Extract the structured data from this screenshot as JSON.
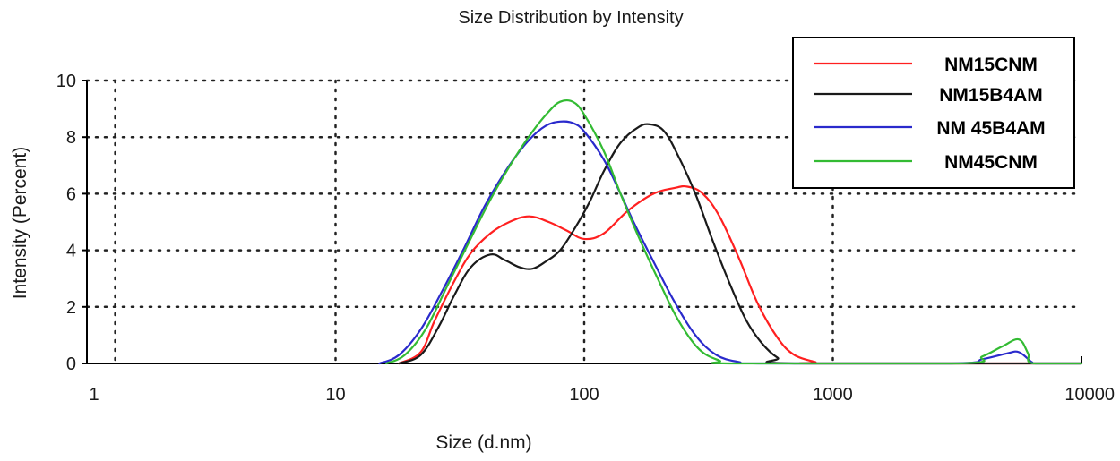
{
  "chart_data": {
    "type": "line",
    "title": "Size Distribution by Intensity",
    "xlabel": "Size (d.nm)",
    "ylabel": "Intensity (Percent)",
    "x_scale": "log",
    "xlim": [
      1,
      10000
    ],
    "ylim": [
      0,
      10
    ],
    "x_ticks": [
      1,
      10,
      100,
      1000,
      10000
    ],
    "x_tick_labels": [
      "1",
      "10",
      "100",
      "1000",
      "10000"
    ],
    "y_ticks": [
      0,
      2,
      4,
      6,
      8,
      10
    ],
    "y_tick_labels": [
      "0",
      "2",
      "4",
      "6",
      "8",
      "10"
    ],
    "x_grid": [
      1.3,
      10,
      100,
      1000,
      10000
    ],
    "grid": true,
    "legend_position": "top-right",
    "series": [
      {
        "name": "NM15CNM",
        "color": "#ff2020",
        "points": [
          [
            18,
            0
          ],
          [
            22,
            0.4
          ],
          [
            25,
            1.5
          ],
          [
            30,
            2.9
          ],
          [
            35,
            3.9
          ],
          [
            42,
            4.6
          ],
          [
            50,
            5.0
          ],
          [
            60,
            5.2
          ],
          [
            72,
            5.0
          ],
          [
            85,
            4.7
          ],
          [
            100,
            4.4
          ],
          [
            120,
            4.6
          ],
          [
            150,
            5.4
          ],
          [
            190,
            6.0
          ],
          [
            230,
            6.2
          ],
          [
            260,
            6.25
          ],
          [
            300,
            6.0
          ],
          [
            350,
            5.2
          ],
          [
            420,
            3.7
          ],
          [
            500,
            2.1
          ],
          [
            600,
            0.9
          ],
          [
            700,
            0.3
          ],
          [
            850,
            0.05
          ],
          [
            900,
            0
          ],
          [
            10000,
            0
          ]
        ]
      },
      {
        "name": "NM15B4AM",
        "color": "#1a1a1a",
        "points": [
          [
            18,
            0
          ],
          [
            22,
            0.3
          ],
          [
            26,
            1.3
          ],
          [
            30,
            2.4
          ],
          [
            35,
            3.4
          ],
          [
            42,
            3.85
          ],
          [
            48,
            3.65
          ],
          [
            55,
            3.4
          ],
          [
            62,
            3.35
          ],
          [
            70,
            3.6
          ],
          [
            80,
            4.0
          ],
          [
            92,
            4.8
          ],
          [
            105,
            5.7
          ],
          [
            120,
            6.8
          ],
          [
            140,
            7.8
          ],
          [
            165,
            8.35
          ],
          [
            185,
            8.45
          ],
          [
            210,
            8.2
          ],
          [
            240,
            7.3
          ],
          [
            280,
            6.0
          ],
          [
            330,
            4.3
          ],
          [
            390,
            2.7
          ],
          [
            450,
            1.5
          ],
          [
            520,
            0.7
          ],
          [
            600,
            0.2
          ],
          [
            700,
            0
          ],
          [
            10000,
            0
          ]
        ]
      },
      {
        "name": "NM 45B4AM",
        "color": "#2a2acc",
        "points": [
          [
            15,
            0
          ],
          [
            18,
            0.3
          ],
          [
            22,
            1.2
          ],
          [
            27,
            2.6
          ],
          [
            33,
            4.1
          ],
          [
            40,
            5.6
          ],
          [
            50,
            7.0
          ],
          [
            60,
            7.9
          ],
          [
            70,
            8.4
          ],
          [
            80,
            8.55
          ],
          [
            90,
            8.5
          ],
          [
            100,
            8.2
          ],
          [
            120,
            7.2
          ],
          [
            140,
            6.0
          ],
          [
            160,
            4.9
          ],
          [
            190,
            3.6
          ],
          [
            230,
            2.2
          ],
          [
            280,
            1.0
          ],
          [
            340,
            0.3
          ],
          [
            420,
            0.05
          ],
          [
            500,
            0
          ],
          [
            3000,
            0
          ],
          [
            4000,
            0.15
          ],
          [
            5000,
            0.35
          ],
          [
            5600,
            0.4
          ],
          [
            6300,
            0.05
          ],
          [
            6600,
            0
          ],
          [
            10000,
            0
          ]
        ]
      },
      {
        "name": "NM45CNM",
        "color": "#33bb33",
        "points": [
          [
            16,
            0
          ],
          [
            19,
            0.3
          ],
          [
            23,
            1.2
          ],
          [
            28,
            2.7
          ],
          [
            34,
            4.2
          ],
          [
            42,
            5.8
          ],
          [
            52,
            7.2
          ],
          [
            62,
            8.2
          ],
          [
            72,
            8.9
          ],
          [
            80,
            9.25
          ],
          [
            90,
            9.25
          ],
          [
            100,
            8.8
          ],
          [
            120,
            7.5
          ],
          [
            140,
            6.0
          ],
          [
            165,
            4.5
          ],
          [
            200,
            2.9
          ],
          [
            240,
            1.5
          ],
          [
            290,
            0.5
          ],
          [
            350,
            0.1
          ],
          [
            400,
            0
          ],
          [
            3200,
            0
          ],
          [
            4000,
            0.25
          ],
          [
            4800,
            0.6
          ],
          [
            5600,
            0.85
          ],
          [
            6100,
            0.35
          ],
          [
            6400,
            0
          ],
          [
            10000,
            0
          ]
        ]
      }
    ]
  }
}
